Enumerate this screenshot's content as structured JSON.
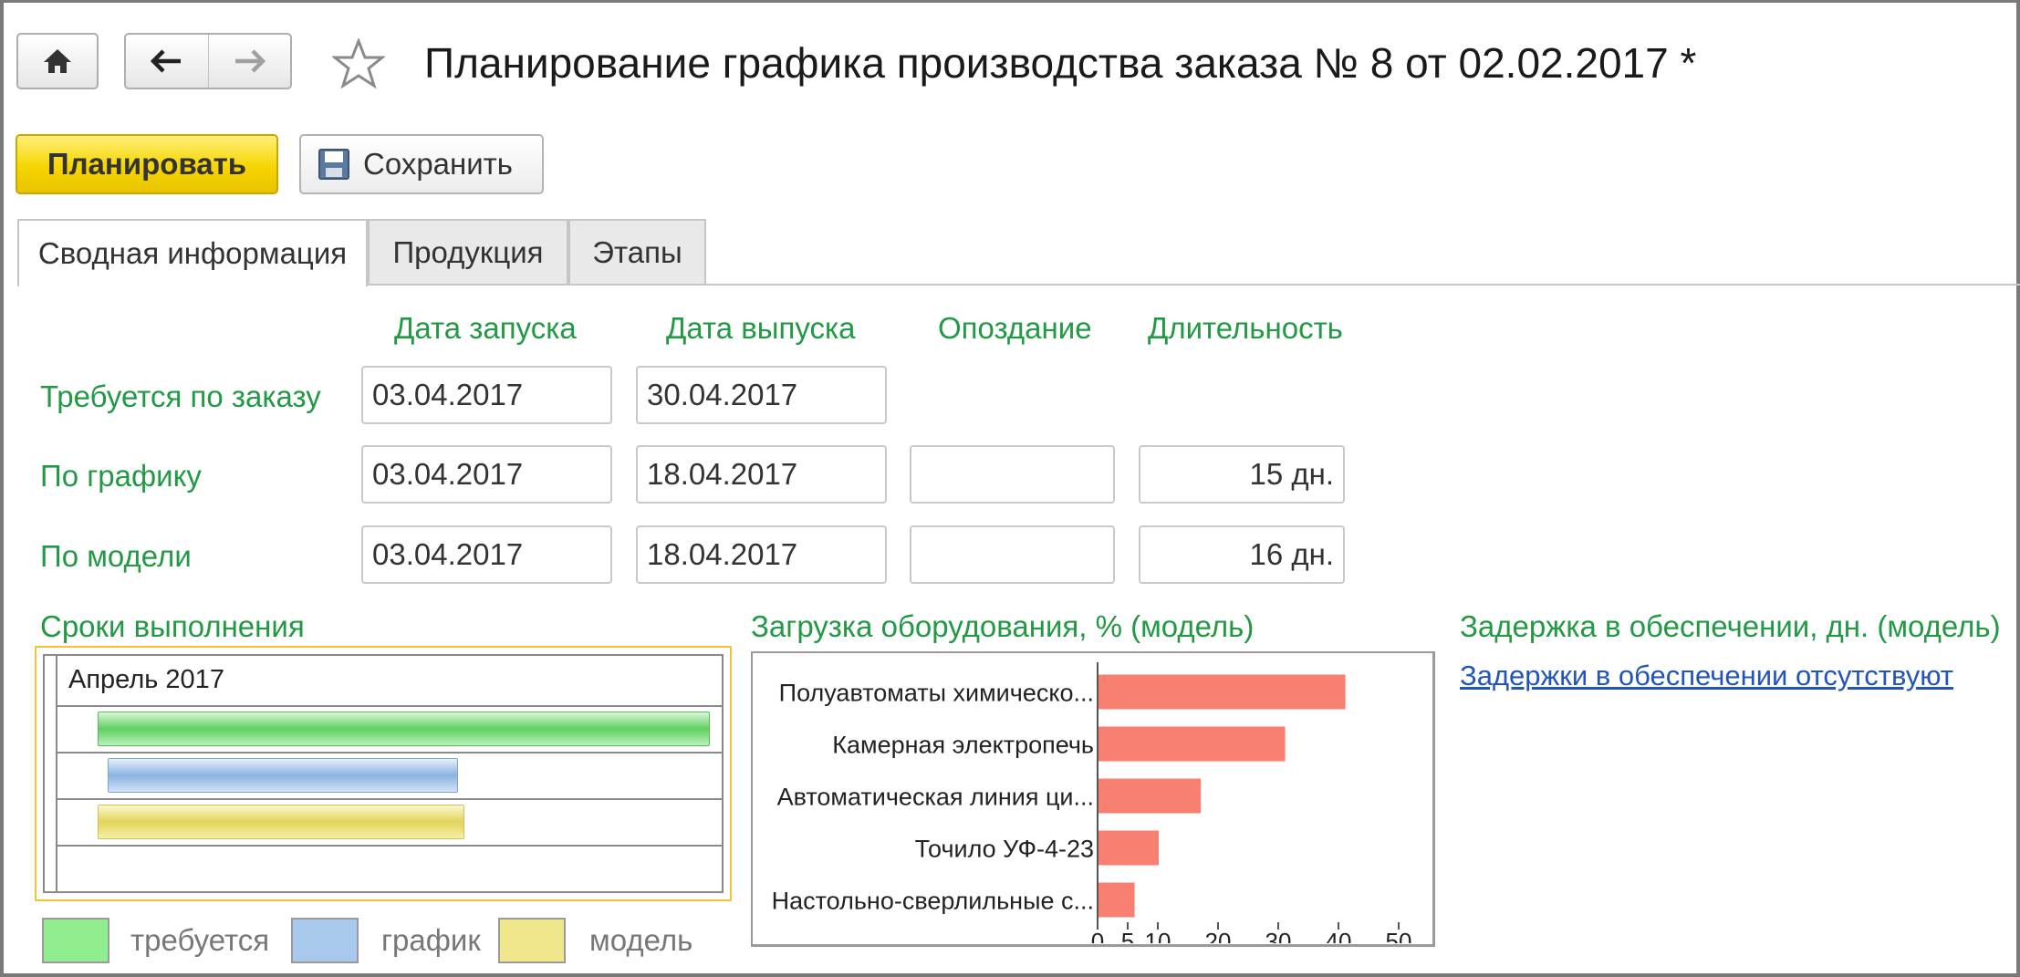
{
  "header": {
    "title": "Планирование графика производства заказа № 8 от 02.02.2017 *"
  },
  "toolbar": {
    "plan_label": "Планировать",
    "save_label": "Сохранить"
  },
  "tabs": [
    {
      "label": "Сводная информация"
    },
    {
      "label": "Продукция"
    },
    {
      "label": "Этапы"
    }
  ],
  "summary": {
    "columns": [
      "Дата запуска",
      "Дата выпуска",
      "Опоздание",
      "Длительность"
    ],
    "rows": [
      {
        "label": "Требуется по заказу",
        "start": "03.04.2017",
        "end": "30.04.2017"
      },
      {
        "label": "По графику",
        "start": "03.04.2017",
        "end": "18.04.2017",
        "delay": "",
        "duration": "15 дн."
      },
      {
        "label": "По модели",
        "start": "03.04.2017",
        "end": "18.04.2017",
        "delay": "",
        "duration": "16 дн."
      }
    ]
  },
  "timeline": {
    "title": "Сроки выполнения",
    "month": "Апрель 2017",
    "bar_fractions": [
      {
        "series": "требуется",
        "start": 0.06,
        "end": 0.98
      },
      {
        "series": "график",
        "start": 0.075,
        "end": 0.6
      },
      {
        "series": "модель",
        "start": 0.06,
        "end": 0.61
      }
    ],
    "legend": [
      {
        "label": "требуется",
        "color": "#90ee90"
      },
      {
        "label": "график",
        "color": "#a9c8ee"
      },
      {
        "label": "модель",
        "color": "#f0e68c"
      }
    ]
  },
  "chart_data": {
    "type": "bar",
    "orientation": "horizontal",
    "title": "Загрузка оборудования, % (модель)",
    "categories": [
      "Полуавтоматы химическо...",
      "Камерная электропечь",
      "Автоматическая линия ци...",
      "Точило УФ-4-23",
      "Настольно-сверлильные с..."
    ],
    "values": [
      41,
      31,
      17,
      10,
      6
    ],
    "xlim": [
      0,
      50
    ],
    "ticks": [
      0,
      5,
      10,
      20,
      30,
      40,
      50
    ],
    "bar_color": "#f88070",
    "grid": false
  },
  "supply": {
    "title": "Задержка в обеспечении, дн. (модель)",
    "link": "Задержки в обеспечении отсутствуют"
  },
  "colors": {
    "label_green": "#229944",
    "link_blue": "#2255bb",
    "accent_yellow": "#f6d500"
  }
}
